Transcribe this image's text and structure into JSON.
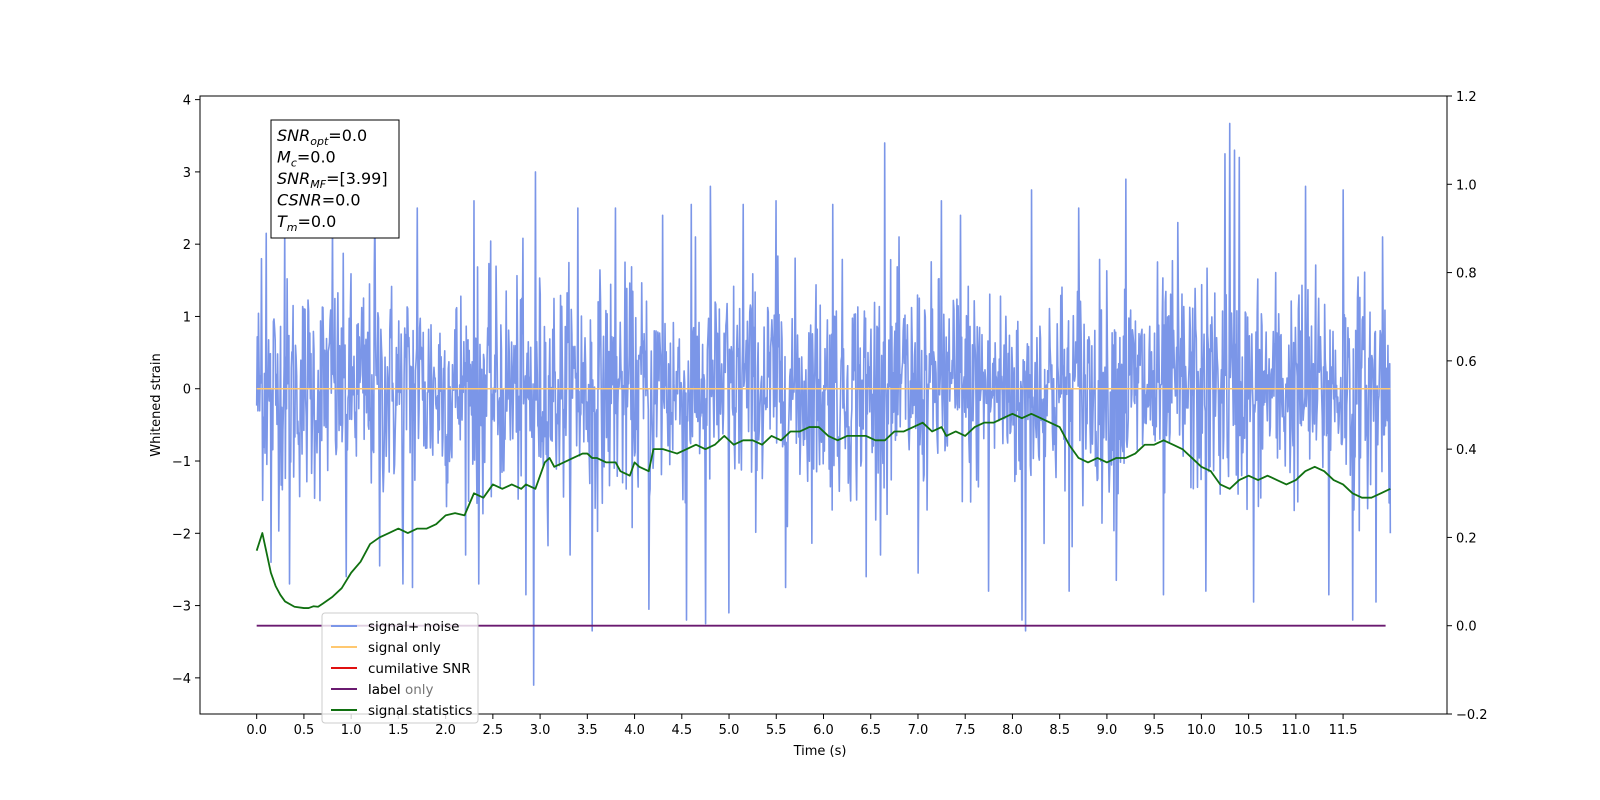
{
  "chart_data": {
    "type": "line",
    "xlabel": "Time (s)",
    "ylabel": "Whitened strain",
    "xlim": [
      -0.6,
      12.6
    ],
    "ylim": [
      -4.5,
      4.05
    ],
    "y2lim": [
      -0.2,
      1.2
    ],
    "x_ticks": [
      0.0,
      0.5,
      1.0,
      1.5,
      2.0,
      2.5,
      3.0,
      3.5,
      4.0,
      4.5,
      5.0,
      5.5,
      6.0,
      6.5,
      7.0,
      7.5,
      8.0,
      8.5,
      9.0,
      9.5,
      10.0,
      10.5,
      11.0,
      11.5
    ],
    "x_tick_labels": [
      "0.0",
      "0.5",
      "1.0",
      "1.5",
      "2.0",
      "2.5",
      "3.0",
      "3.5",
      "4.0",
      "4.5",
      "5.0",
      "5.5",
      "6.0",
      "6.5",
      "7.0",
      "7.5",
      "8.0",
      "8.5",
      "9.0",
      "9.5",
      "10.0",
      "10.5",
      "11.0",
      "11.5"
    ],
    "y_ticks": [
      4,
      3,
      2,
      1,
      0,
      -1,
      -2,
      -3,
      -4
    ],
    "y_tick_labels": [
      "4",
      "3",
      "2",
      "1",
      "0",
      "−1",
      "−2",
      "−3",
      "−4"
    ],
    "y2_ticks": [
      1.2,
      1.0,
      0.8,
      0.6,
      0.4,
      0.2,
      0.0,
      -0.2
    ],
    "y2_tick_labels": [
      "1.2",
      "1.0",
      "0.8",
      "0.6",
      "0.4",
      "0.2",
      "0.0",
      "−0.2"
    ],
    "info_box": [
      {
        "base": "SNR",
        "sub": "opt",
        "value": "=0.0"
      },
      {
        "base": "M",
        "sub": "c",
        "value": "=0.0"
      },
      {
        "base": "SNR",
        "sub": "MF",
        "value": "=[3.99]"
      },
      {
        "base": "CSNR",
        "sub": "",
        "value": "=0.0"
      },
      {
        "base": "T",
        "sub": "m",
        "value": "=0.0"
      }
    ],
    "legend": {
      "placement": "lower-left",
      "entries": [
        {
          "label": "signal+ noise",
          "color": "#7b96e8"
        },
        {
          "label": "signal only",
          "color": "#ffc870"
        },
        {
          "label": "cumilative SNR",
          "color": "#e01010"
        },
        {
          "label": "label",
          "color": "#6a1a70"
        },
        {
          "label": "signal statistics",
          "color": "#107010"
        }
      ]
    },
    "hidden_overlapping_legend_text": "label only",
    "series": [
      {
        "name": "signal+ noise",
        "axis": "left",
        "color": "#7b96e8",
        "x_range": [
          0.0,
          12.0
        ],
        "envelope_y": [
          -1.5,
          1.5
        ],
        "peak_points": [
          [
            0.05,
            1.8
          ],
          [
            0.1,
            2.15
          ],
          [
            0.3,
            2.3
          ],
          [
            0.8,
            2.3
          ],
          [
            1.25,
            2.5
          ],
          [
            1.65,
            3.62
          ],
          [
            1.7,
            2.5
          ],
          [
            2.3,
            2.6
          ],
          [
            2.95,
            3.0
          ],
          [
            3.4,
            2.5
          ],
          [
            3.8,
            2.5
          ],
          [
            4.3,
            2.4
          ],
          [
            4.6,
            2.55
          ],
          [
            4.8,
            2.8
          ],
          [
            5.15,
            2.55
          ],
          [
            5.5,
            2.6
          ],
          [
            6.1,
            2.55
          ],
          [
            6.65,
            3.4
          ],
          [
            7.25,
            2.6
          ],
          [
            7.45,
            2.4
          ],
          [
            7.75,
            2.8
          ],
          [
            8.1,
            2.9
          ],
          [
            8.2,
            2.75
          ],
          [
            8.7,
            2.5
          ],
          [
            9.2,
            2.9
          ],
          [
            9.75,
            2.3
          ],
          [
            10.25,
            3.25
          ],
          [
            10.3,
            3.67
          ],
          [
            10.35,
            3.3
          ],
          [
            10.4,
            3.2
          ],
          [
            11.1,
            2.8
          ],
          [
            11.5,
            2.75
          ],
          [
            11.85,
            2.5
          ],
          [
            11.92,
            2.1
          ]
        ],
        "trough_points": [
          [
            0.15,
            -2.4
          ],
          [
            0.35,
            -2.7
          ],
          [
            0.95,
            -2.6
          ],
          [
            1.3,
            -2.45
          ],
          [
            1.55,
            -2.7
          ],
          [
            1.65,
            -2.75
          ],
          [
            2.35,
            -2.7
          ],
          [
            2.85,
            -2.85
          ],
          [
            2.93,
            -4.1
          ],
          [
            3.55,
            -3.35
          ],
          [
            4.15,
            -3.05
          ],
          [
            4.55,
            -3.2
          ],
          [
            4.75,
            -3.25
          ],
          [
            5.0,
            -3.1
          ],
          [
            5.6,
            -2.75
          ],
          [
            6.45,
            -2.6
          ],
          [
            7.0,
            -2.55
          ],
          [
            7.75,
            -2.8
          ],
          [
            8.1,
            -3.2
          ],
          [
            8.14,
            -3.35
          ],
          [
            8.6,
            -2.8
          ],
          [
            9.1,
            -2.65
          ],
          [
            9.6,
            -2.85
          ],
          [
            10.05,
            -2.8
          ],
          [
            10.55,
            -2.95
          ],
          [
            11.35,
            -2.85
          ],
          [
            11.6,
            -3.2
          ],
          [
            11.85,
            -2.95
          ],
          [
            12.0,
            -2.0
          ]
        ]
      },
      {
        "name": "signal only",
        "axis": "left",
        "color": "#ffc870",
        "points": [
          [
            0.0,
            0.0
          ],
          [
            12.0,
            0.0
          ]
        ]
      },
      {
        "name": "label",
        "axis": "right",
        "color": "#6a1a70",
        "points": [
          [
            0.0,
            0.0
          ],
          [
            11.95,
            0.0
          ]
        ]
      },
      {
        "name": "signal statistics",
        "axis": "right",
        "color": "#107010",
        "points": [
          [
            0.0,
            0.17
          ],
          [
            0.06,
            0.21
          ],
          [
            0.1,
            0.17
          ],
          [
            0.15,
            0.12
          ],
          [
            0.2,
            0.09
          ],
          [
            0.25,
            0.07
          ],
          [
            0.3,
            0.055
          ],
          [
            0.4,
            0.043
          ],
          [
            0.5,
            0.04
          ],
          [
            0.55,
            0.04
          ],
          [
            0.6,
            0.044
          ],
          [
            0.65,
            0.043
          ],
          [
            0.7,
            0.05
          ],
          [
            0.8,
            0.065
          ],
          [
            0.9,
            0.085
          ],
          [
            1.0,
            0.12
          ],
          [
            1.1,
            0.145
          ],
          [
            1.2,
            0.185
          ],
          [
            1.3,
            0.2
          ],
          [
            1.4,
            0.21
          ],
          [
            1.5,
            0.22
          ],
          [
            1.6,
            0.21
          ],
          [
            1.7,
            0.22
          ],
          [
            1.8,
            0.22
          ],
          [
            1.9,
            0.23
          ],
          [
            2.0,
            0.25
          ],
          [
            2.1,
            0.255
          ],
          [
            2.2,
            0.25
          ],
          [
            2.3,
            0.3
          ],
          [
            2.4,
            0.29
          ],
          [
            2.5,
            0.32
          ],
          [
            2.6,
            0.31
          ],
          [
            2.7,
            0.32
          ],
          [
            2.8,
            0.31
          ],
          [
            2.85,
            0.32
          ],
          [
            2.95,
            0.31
          ],
          [
            3.05,
            0.37
          ],
          [
            3.1,
            0.38
          ],
          [
            3.15,
            0.36
          ],
          [
            3.25,
            0.37
          ],
          [
            3.35,
            0.38
          ],
          [
            3.45,
            0.39
          ],
          [
            3.5,
            0.39
          ],
          [
            3.55,
            0.38
          ],
          [
            3.6,
            0.38
          ],
          [
            3.7,
            0.37
          ],
          [
            3.8,
            0.37
          ],
          [
            3.85,
            0.35
          ],
          [
            3.95,
            0.34
          ],
          [
            4.0,
            0.37
          ],
          [
            4.05,
            0.36
          ],
          [
            4.15,
            0.35
          ],
          [
            4.2,
            0.4
          ],
          [
            4.3,
            0.4
          ],
          [
            4.45,
            0.39
          ],
          [
            4.55,
            0.4
          ],
          [
            4.65,
            0.41
          ],
          [
            4.75,
            0.4
          ],
          [
            4.85,
            0.41
          ],
          [
            4.95,
            0.43
          ],
          [
            5.05,
            0.41
          ],
          [
            5.15,
            0.42
          ],
          [
            5.25,
            0.42
          ],
          [
            5.35,
            0.41
          ],
          [
            5.45,
            0.43
          ],
          [
            5.55,
            0.42
          ],
          [
            5.65,
            0.44
          ],
          [
            5.75,
            0.44
          ],
          [
            5.85,
            0.45
          ],
          [
            5.95,
            0.45
          ],
          [
            6.05,
            0.43
          ],
          [
            6.15,
            0.42
          ],
          [
            6.25,
            0.43
          ],
          [
            6.35,
            0.43
          ],
          [
            6.45,
            0.43
          ],
          [
            6.55,
            0.42
          ],
          [
            6.65,
            0.42
          ],
          [
            6.75,
            0.44
          ],
          [
            6.85,
            0.44
          ],
          [
            6.95,
            0.45
          ],
          [
            7.05,
            0.46
          ],
          [
            7.15,
            0.44
          ],
          [
            7.25,
            0.45
          ],
          [
            7.3,
            0.43
          ],
          [
            7.4,
            0.44
          ],
          [
            7.5,
            0.43
          ],
          [
            7.6,
            0.45
          ],
          [
            7.7,
            0.46
          ],
          [
            7.8,
            0.46
          ],
          [
            7.9,
            0.47
          ],
          [
            8.0,
            0.48
          ],
          [
            8.1,
            0.47
          ],
          [
            8.2,
            0.48
          ],
          [
            8.3,
            0.47
          ],
          [
            8.4,
            0.46
          ],
          [
            8.5,
            0.45
          ],
          [
            8.6,
            0.41
          ],
          [
            8.7,
            0.38
          ],
          [
            8.8,
            0.37
          ],
          [
            8.9,
            0.38
          ],
          [
            9.0,
            0.37
          ],
          [
            9.1,
            0.38
          ],
          [
            9.2,
            0.38
          ],
          [
            9.3,
            0.39
          ],
          [
            9.4,
            0.41
          ],
          [
            9.5,
            0.41
          ],
          [
            9.6,
            0.42
          ],
          [
            9.7,
            0.41
          ],
          [
            9.8,
            0.4
          ],
          [
            9.9,
            0.38
          ],
          [
            10.0,
            0.36
          ],
          [
            10.1,
            0.35
          ],
          [
            10.2,
            0.32
          ],
          [
            10.3,
            0.31
          ],
          [
            10.4,
            0.33
          ],
          [
            10.5,
            0.34
          ],
          [
            10.6,
            0.33
          ],
          [
            10.7,
            0.34
          ],
          [
            10.8,
            0.33
          ],
          [
            10.9,
            0.32
          ],
          [
            11.0,
            0.33
          ],
          [
            11.1,
            0.35
          ],
          [
            11.2,
            0.36
          ],
          [
            11.3,
            0.35
          ],
          [
            11.4,
            0.33
          ],
          [
            11.5,
            0.32
          ],
          [
            11.6,
            0.3
          ],
          [
            11.7,
            0.29
          ],
          [
            11.8,
            0.29
          ],
          [
            11.9,
            0.3
          ],
          [
            12.0,
            0.31
          ]
        ]
      }
    ]
  }
}
